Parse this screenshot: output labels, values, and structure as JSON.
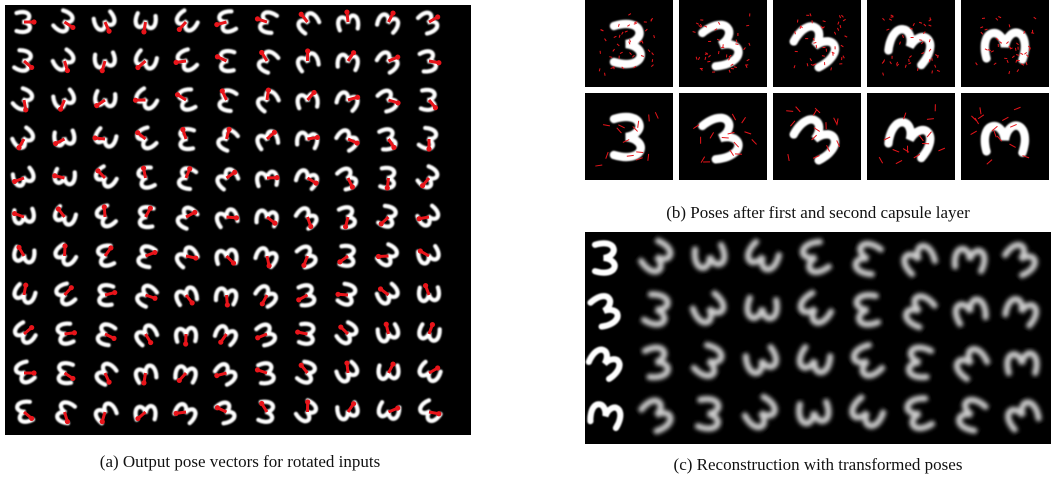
{
  "figure": {
    "captions": [
      "(a) Output pose vectors for rotated inputs",
      "(b) Poses after first and second capsule layer",
      "(c) Reconstruction with transformed poses"
    ]
  }
}
